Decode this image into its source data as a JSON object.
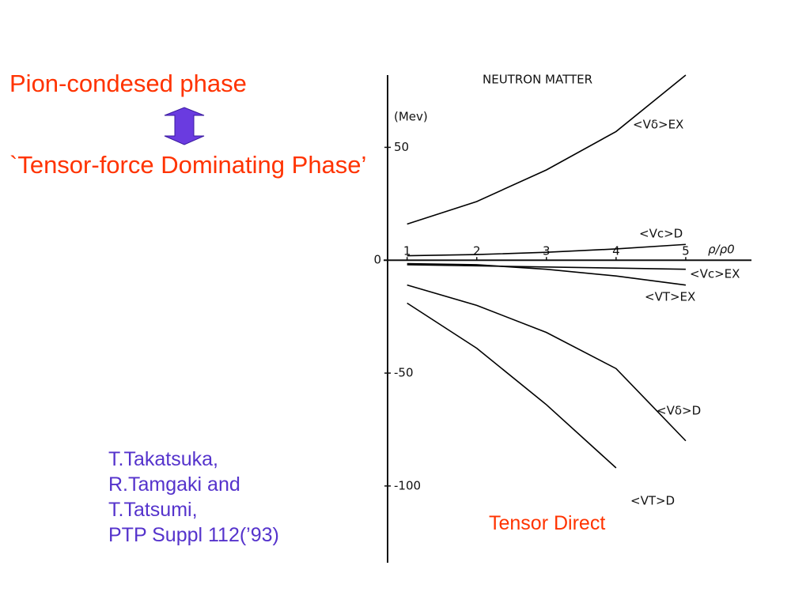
{
  "slide": {
    "heading": "Pion-condesed phase",
    "subheading": "`Tensor-force Dominating Phase’",
    "citation": [
      "T.Takatsuka,",
      "R.Tamgaki and",
      "T.Tatsumi,",
      "PTP Suppl 112(’93)"
    ],
    "note": "Tensor Direct"
  },
  "chart_data": {
    "type": "line",
    "title": "NEUTRON MATTER",
    "y_label": "(Mev)",
    "x_label": "ρ/ρ0",
    "x": [
      1,
      2,
      3,
      4,
      5
    ],
    "xlim": [
      0.72,
      5.83
    ],
    "xticks": [
      1,
      2,
      3,
      4,
      5
    ],
    "ylim": [
      -134,
      82
    ],
    "yticks": [
      50,
      0,
      -50,
      -100
    ],
    "series": [
      {
        "name": "<Vδ>EX",
        "color": "#000000",
        "values": [
          16,
          26,
          40,
          57,
          82
        ]
      },
      {
        "name": "<Vc>D",
        "color": "#000000",
        "values": [
          2,
          2.5,
          3.5,
          5,
          7
        ]
      },
      {
        "name": "<Vc>EX",
        "color": "#000000",
        "values": [
          -2,
          -2.5,
          -3,
          -3.5,
          -4
        ]
      },
      {
        "name": "<VT>EX",
        "color": "#000000",
        "values": [
          -1.5,
          -2,
          -4,
          -7,
          -11
        ]
      },
      {
        "name": "<Vδ>D",
        "color": "#000000",
        "values": [
          -11,
          -20,
          -32,
          -48,
          -80
        ]
      },
      {
        "name": "<VT>D",
        "color": "#000000",
        "values": [
          -19,
          -39,
          -64,
          -92,
          null
        ]
      }
    ]
  }
}
